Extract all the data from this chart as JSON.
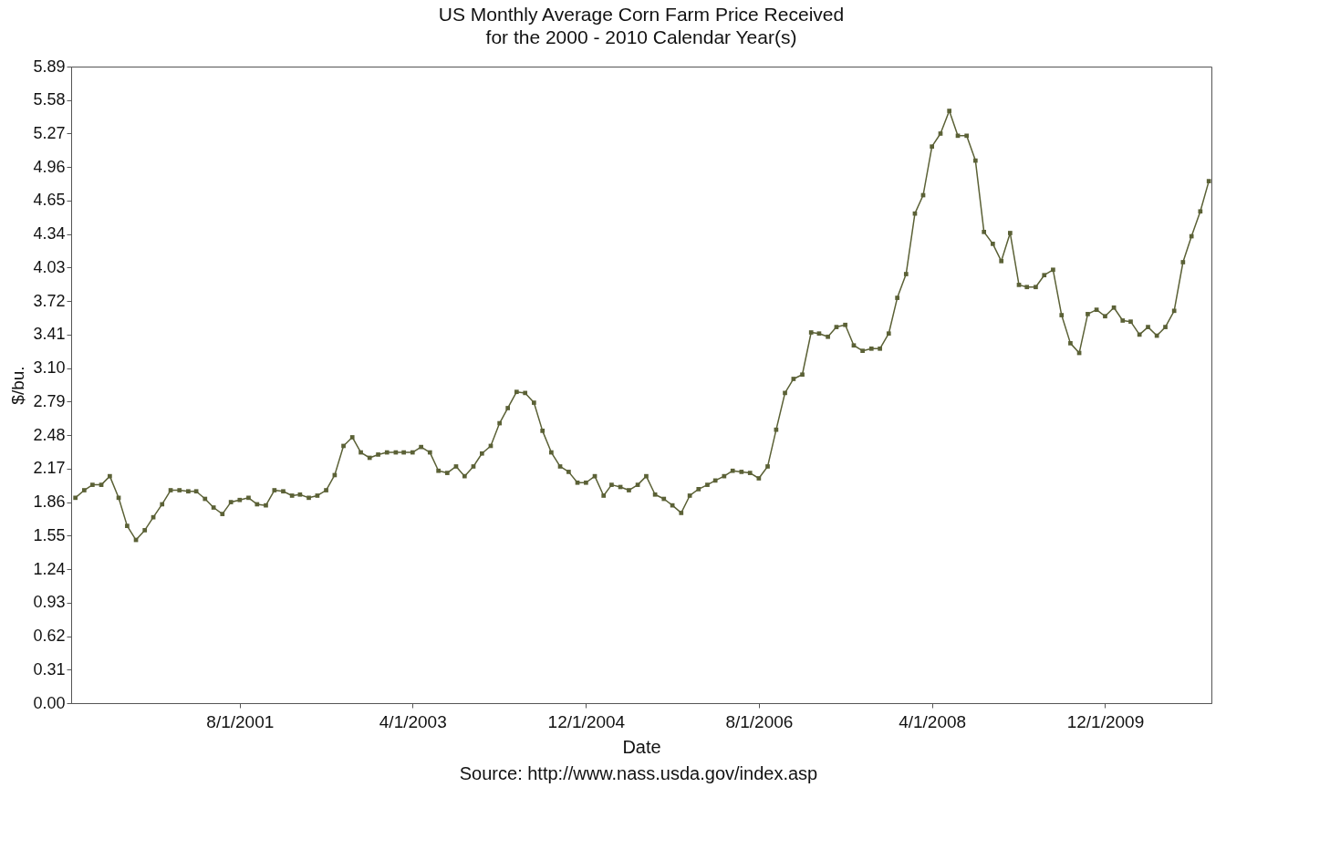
{
  "chart_data": {
    "type": "line",
    "title": "US Monthly Average Corn Farm Price Received",
    "subtitle": "for the 2000 - 2010 Calendar Year(s)",
    "xlabel": "Date",
    "ylabel": "$/bu.",
    "annotations": [
      "Source: http://www.nass.usda.gov/index.asp"
    ],
    "x": [
      "2000-01",
      "2000-02",
      "2000-03",
      "2000-04",
      "2000-05",
      "2000-06",
      "2000-07",
      "2000-08",
      "2000-09",
      "2000-10",
      "2000-11",
      "2000-12",
      "2001-01",
      "2001-02",
      "2001-03",
      "2001-04",
      "2001-05",
      "2001-06",
      "2001-07",
      "2001-08",
      "2001-09",
      "2001-10",
      "2001-11",
      "2001-12",
      "2002-01",
      "2002-02",
      "2002-03",
      "2002-04",
      "2002-05",
      "2002-06",
      "2002-07",
      "2002-08",
      "2002-09",
      "2002-10",
      "2002-11",
      "2002-12",
      "2003-01",
      "2003-02",
      "2003-03",
      "2003-04",
      "2003-05",
      "2003-06",
      "2003-07",
      "2003-08",
      "2003-09",
      "2003-10",
      "2003-11",
      "2003-12",
      "2004-01",
      "2004-02",
      "2004-03",
      "2004-04",
      "2004-05",
      "2004-06",
      "2004-07",
      "2004-08",
      "2004-09",
      "2004-10",
      "2004-11",
      "2004-12",
      "2005-01",
      "2005-02",
      "2005-03",
      "2005-04",
      "2005-05",
      "2005-06",
      "2005-07",
      "2005-08",
      "2005-09",
      "2005-10",
      "2005-11",
      "2005-12",
      "2006-01",
      "2006-02",
      "2006-03",
      "2006-04",
      "2006-05",
      "2006-06",
      "2006-07",
      "2006-08",
      "2006-09",
      "2006-10",
      "2006-11",
      "2006-12",
      "2007-01",
      "2007-02",
      "2007-03",
      "2007-04",
      "2007-05",
      "2007-06",
      "2007-07",
      "2007-08",
      "2007-09",
      "2007-10",
      "2007-11",
      "2007-12",
      "2008-01",
      "2008-02",
      "2008-03",
      "2008-04",
      "2008-05",
      "2008-06",
      "2008-07",
      "2008-08",
      "2008-09",
      "2008-10",
      "2008-11",
      "2008-12",
      "2009-01",
      "2009-02",
      "2009-03",
      "2009-04",
      "2009-05",
      "2009-06",
      "2009-07",
      "2009-08",
      "2009-09",
      "2009-10",
      "2009-11",
      "2009-12",
      "2010-01",
      "2010-02",
      "2010-03",
      "2010-04",
      "2010-05",
      "2010-06",
      "2010-07",
      "2010-08",
      "2010-09",
      "2010-10",
      "2010-11",
      "2010-12"
    ],
    "series": [
      {
        "color": "#5b6136",
        "values": [
          1.9,
          1.97,
          2.02,
          2.02,
          2.1,
          1.9,
          1.64,
          1.51,
          1.6,
          1.72,
          1.84,
          1.97,
          1.97,
          1.96,
          1.96,
          1.89,
          1.81,
          1.75,
          1.86,
          1.88,
          1.9,
          1.84,
          1.83,
          1.97,
          1.96,
          1.92,
          1.93,
          1.9,
          1.92,
          1.97,
          2.11,
          2.38,
          2.46,
          2.32,
          2.27,
          2.3,
          2.32,
          2.32,
          2.32,
          2.32,
          2.37,
          2.32,
          2.15,
          2.13,
          2.19,
          2.1,
          2.19,
          2.31,
          2.38,
          2.59,
          2.73,
          2.88,
          2.87,
          2.78,
          2.52,
          2.32,
          2.19,
          2.14,
          2.04,
          2.04,
          2.1,
          1.92,
          2.02,
          2.0,
          1.97,
          2.02,
          2.1,
          1.93,
          1.89,
          1.83,
          1.76,
          1.92,
          1.98,
          2.02,
          2.06,
          2.1,
          2.15,
          2.14,
          2.13,
          2.08,
          2.19,
          2.53,
          2.87,
          3.0,
          3.04,
          3.43,
          3.42,
          3.39,
          3.48,
          3.5,
          3.31,
          3.26,
          3.28,
          3.28,
          3.42,
          3.75,
          3.97,
          4.53,
          4.7,
          5.15,
          5.27,
          5.48,
          5.25,
          5.25,
          5.02,
          4.36,
          4.25,
          4.09,
          4.35,
          3.87,
          3.85,
          3.85,
          3.96,
          4.01,
          3.59,
          3.33,
          3.24,
          3.6,
          3.64,
          3.58,
          3.66,
          3.54,
          3.53,
          3.41,
          3.48,
          3.4,
          3.48,
          3.63,
          4.08,
          4.32,
          4.55,
          4.83
        ]
      }
    ],
    "xlim": [
      "1999-12-17",
      "2010-12-10"
    ],
    "xticks": [
      {
        "value": "2001-08-01",
        "label": "8/1/2001"
      },
      {
        "value": "2003-04-01",
        "label": "4/1/2003"
      },
      {
        "value": "2004-12-01",
        "label": "12/1/2004"
      },
      {
        "value": "2006-08-01",
        "label": "8/1/2006"
      },
      {
        "value": "2008-04-01",
        "label": "4/1/2008"
      },
      {
        "value": "2009-12-01",
        "label": "12/1/2009"
      }
    ],
    "ylim": [
      0,
      5.89
    ],
    "yticks": [
      {
        "value": 0,
        "label": "0.00"
      },
      0.31,
      0.62,
      0.93,
      1.24,
      1.55,
      1.86,
      2.17,
      2.48,
      2.79,
      {
        "value": 3.1,
        "label": "3.10"
      },
      3.41,
      3.72,
      4.03,
      4.34,
      4.65,
      4.96,
      5.27,
      5.58,
      5.89
    ],
    "grid": false,
    "legend": false,
    "marker": "square",
    "line_style": "solid"
  }
}
